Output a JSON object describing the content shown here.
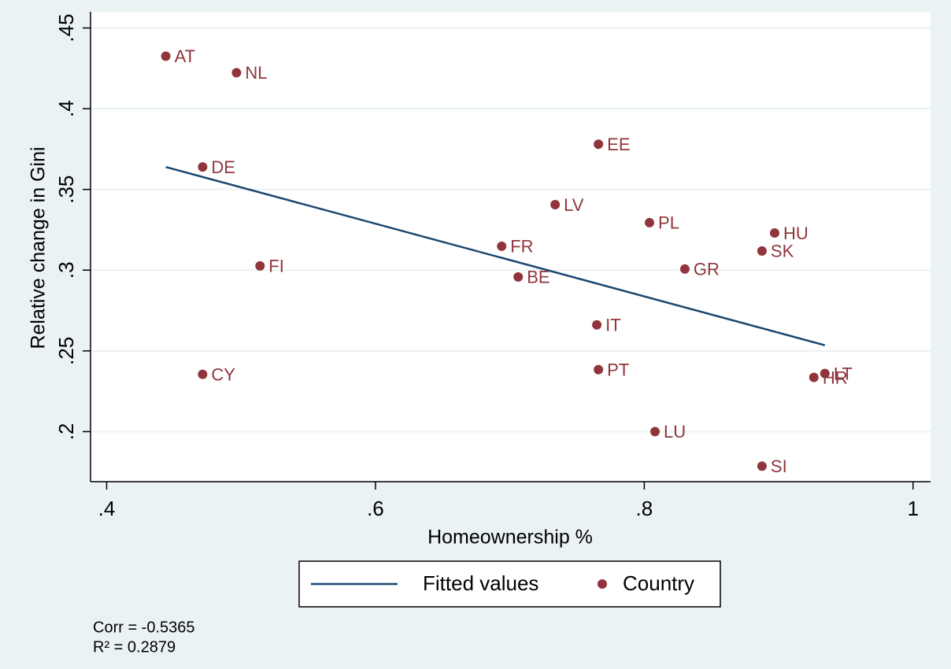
{
  "chart_data": {
    "type": "scatter",
    "xlabel": "Homeownership %",
    "ylabel": "Relative change in Gini",
    "xlim": [
      0.388,
      1.013
    ],
    "ylim": [
      0.169,
      0.46
    ],
    "xticks": [
      {
        "value": 0.4,
        "label": ".4"
      },
      {
        "value": 0.6,
        "label": ".6"
      },
      {
        "value": 0.8,
        "label": ".8"
      },
      1
    ],
    "yticks": [
      {
        "value": 0.2,
        "label": ".2"
      },
      {
        "value": 0.25,
        "label": ".25"
      },
      {
        "value": 0.3,
        "label": ".3"
      },
      {
        "value": 0.35,
        "label": ".35"
      },
      {
        "value": 0.4,
        "label": ".4"
      },
      {
        "value": 0.45,
        "label": ".45"
      }
    ],
    "grid": true,
    "legend": "bottom",
    "series": [
      {
        "name": "Fitted values",
        "type": "line",
        "color": "#1a476f",
        "x": [
          0.444,
          0.9344
        ],
        "values": [
          0.3639,
          0.2535
        ]
      },
      {
        "name": "Country",
        "type": "scatter",
        "color": "#90353b",
        "labels": [
          "AT",
          "NL",
          "DE",
          "FI",
          "CY",
          "FR",
          "BE",
          "LV",
          "EE",
          "IT",
          "PT",
          "PL",
          "LU",
          "GR",
          "HU",
          "SK",
          "SI",
          "LT",
          "HR"
        ],
        "x": [
          0.444,
          0.4966,
          0.4714,
          0.5141,
          0.4714,
          0.6939,
          0.7062,
          0.7337,
          0.7659,
          0.7647,
          0.7659,
          0.8039,
          0.808,
          0.8302,
          0.897,
          0.8876,
          0.8876,
          0.9344,
          0.9262
        ],
        "values": [
          0.4325,
          0.4223,
          0.3639,
          0.3026,
          0.2355,
          0.3148,
          0.2958,
          0.3406,
          0.378,
          0.2661,
          0.2384,
          0.3294,
          0.2,
          0.3007,
          0.323,
          0.3119,
          0.1786,
          0.236,
          0.2336
        ]
      }
    ],
    "annotations": [
      "Corr = -0.5365",
      "R² = 0.2879"
    ]
  }
}
